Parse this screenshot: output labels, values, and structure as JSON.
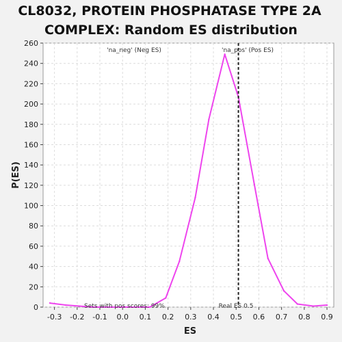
{
  "chart_data": {
    "type": "line",
    "title_lines": [
      "CL8032, PROTEIN PHOSPHATASE TYPE 2A",
      "COMPLEX: Random ES distribution"
    ],
    "xlabel": "ES",
    "ylabel": "P(ES)",
    "xlim": [
      -0.35,
      0.93
    ],
    "ylim": [
      0,
      260
    ],
    "x_ticks": [
      -0.3,
      -0.2,
      -0.1,
      0.0,
      0.1,
      0.2,
      0.3,
      0.4,
      0.5,
      0.6,
      0.7,
      0.8,
      0.9
    ],
    "y_ticks": [
      0,
      20,
      40,
      60,
      80,
      100,
      120,
      140,
      160,
      180,
      200,
      220,
      240,
      260
    ],
    "grid": true,
    "series": [
      {
        "color": "#ee44ee",
        "x": [
          -0.32,
          -0.25,
          -0.19,
          -0.13,
          -0.06,
          0.0,
          0.06,
          0.12,
          0.19,
          0.25,
          0.32,
          0.38,
          0.45,
          0.51,
          0.58,
          0.64,
          0.71,
          0.77,
          0.84,
          0.9
        ],
        "y": [
          4,
          2,
          1,
          0,
          0,
          0,
          0,
          0,
          9,
          45,
          108,
          185,
          249,
          207,
          121,
          48,
          16,
          3,
          1,
          2
        ]
      }
    ],
    "reference_line": {
      "x": 0.51,
      "label": "Real ES 0.5",
      "style": "dashed",
      "color": "#222222"
    },
    "annotations": {
      "neg_label": {
        "text": "'na_neg' (Neg ES)",
        "color": "#3333cc"
      },
      "pos_label": {
        "text": "'na_pos' (Pos ES)",
        "color": "#cc3333"
      },
      "sets_note": "Sets with pos scores: 99%"
    }
  }
}
